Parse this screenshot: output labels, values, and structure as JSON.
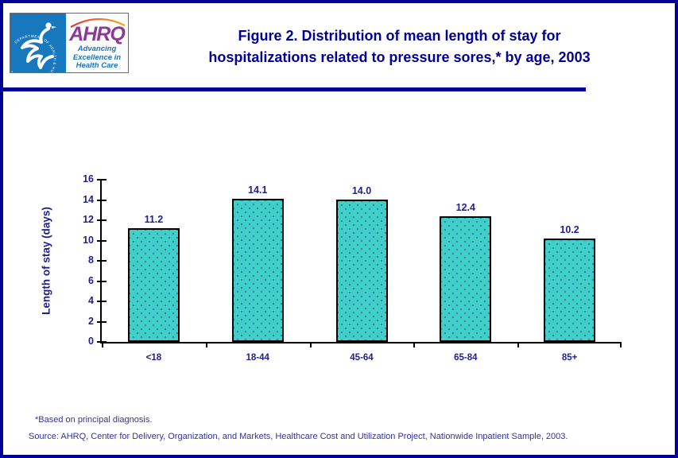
{
  "header": {
    "title_line1": "Figure 2. Distribution of mean length of stay for",
    "title_line2": "hospitalizations related to pressure sores,* by age, 2003",
    "title_color": "#000099"
  },
  "logo": {
    "hhs_seal_text": "DEPARTMENT OF HEALTH & HUMAN SERVICES • USA",
    "ahrq_acronym": "AHRQ",
    "tagline": [
      "Advancing",
      "Excellence in",
      "Health Care"
    ]
  },
  "chart_data": {
    "type": "bar",
    "title": "Figure 2. Distribution of mean length of stay for hospitalizations related to pressure sores,* by age, 2003",
    "categories": [
      "<18",
      "18-44",
      "45-64",
      "65-84",
      "85+"
    ],
    "values": [
      11.2,
      14.1,
      14.0,
      12.4,
      10.2
    ],
    "value_labels": [
      "11.2",
      "14.1",
      "14.0",
      "12.4",
      "10.2"
    ],
    "xlabel": "",
    "ylabel": "Length of stay (days)",
    "ylim": [
      0,
      16
    ],
    "ytick_step": 2,
    "grid": false,
    "legend": "none",
    "bar_fill": "#3ED2C6",
    "bar_border": "#000000",
    "text_color": "#1F1F8F"
  },
  "footnotes": {
    "line1": "*Based on principal diagnosis.",
    "line2": "Source: AHRQ, Center for Delivery, Organization, and Markets, Healthcare Cost and Utilization Project, Nationwide Inpatient Sample, 2003."
  }
}
